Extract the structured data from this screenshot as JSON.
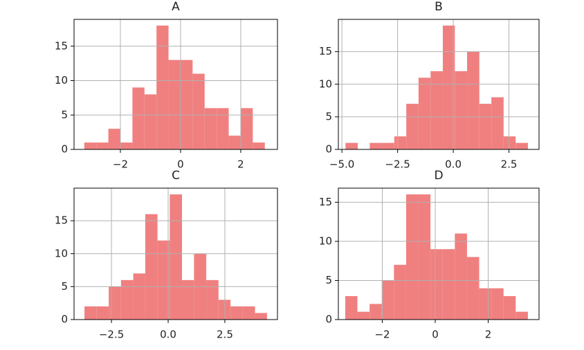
{
  "chart_data": [
    {
      "type": "histogram",
      "title": "A",
      "color": "#f08080",
      "grid": true,
      "bins": [
        -3.2,
        -2.8,
        -2.4,
        -2.0,
        -1.6,
        -1.2,
        -0.8,
        -0.4,
        0.0,
        0.4,
        0.8,
        1.2,
        1.6,
        2.0,
        2.4,
        2.8
      ],
      "values": [
        1,
        1,
        3,
        1,
        9,
        8,
        18,
        13,
        13,
        11,
        6,
        6,
        2,
        6,
        1
      ],
      "xlim": [
        -3.54,
        3.22
      ],
      "ylim": [
        0,
        18.9
      ],
      "xticks": [
        {
          "value": -2,
          "label": "−2"
        },
        0,
        2
      ],
      "yticks": [
        0,
        5,
        10,
        15
      ]
    },
    {
      "type": "histogram",
      "title": "B",
      "color": "#f08080",
      "grid": true,
      "bins": [
        -4.84,
        -4.29,
        -3.75,
        -3.2,
        -2.65,
        -2.11,
        -1.56,
        -1.02,
        -0.47,
        0.07,
        0.62,
        1.17,
        1.71,
        2.26,
        2.8,
        3.35
      ],
      "values": [
        1,
        0,
        1,
        1,
        2,
        7,
        11,
        12,
        19,
        12,
        15,
        7,
        8,
        2,
        1
      ],
      "xlim": [
        -5.16,
        3.85
      ],
      "ylim": [
        0,
        19.95
      ],
      "xticks": [
        {
          "value": -5,
          "label": "−5.0"
        },
        {
          "value": -2.5,
          "label": "−2.5"
        },
        {
          "value": 0,
          "label": "0.0"
        },
        2.5
      ],
      "yticks": [
        0,
        5,
        10,
        15
      ]
    },
    {
      "type": "histogram",
      "title": "C",
      "color": "#f08080",
      "grid": true,
      "bins": [
        -3.69,
        -3.15,
        -2.62,
        -2.08,
        -1.54,
        -1.01,
        -0.47,
        0.07,
        0.61,
        1.14,
        1.68,
        2.22,
        2.75,
        3.29,
        3.83,
        4.36
      ],
      "values": [
        2,
        2,
        5,
        6,
        7,
        16,
        12,
        19,
        6,
        10,
        6,
        3,
        2,
        2,
        1
      ],
      "xlim": [
        -4.15,
        4.82
      ],
      "ylim": [
        0,
        19.95
      ],
      "xticks": [
        {
          "value": -2.5,
          "label": "−2.5"
        },
        {
          "value": 0,
          "label": "0.0"
        },
        2.5
      ],
      "yticks": [
        0,
        5,
        10,
        15
      ]
    },
    {
      "type": "histogram",
      "title": "D",
      "color": "#f08080",
      "grid": true,
      "bins": [
        -3.4,
        -2.94,
        -2.48,
        -2.02,
        -1.56,
        -1.1,
        -0.64,
        -0.18,
        0.28,
        0.74,
        1.2,
        1.66,
        2.12,
        2.58,
        3.04,
        3.5
      ],
      "values": [
        3,
        1,
        2,
        5,
        7,
        16,
        16,
        9,
        9,
        11,
        8,
        4,
        4,
        3,
        1
      ],
      "xlim": [
        -3.66,
        3.92
      ],
      "ylim": [
        0,
        16.8
      ],
      "xticks": [
        {
          "value": -2,
          "label": "−2"
        },
        0,
        2
      ],
      "yticks": [
        0,
        5,
        10,
        15
      ]
    }
  ]
}
